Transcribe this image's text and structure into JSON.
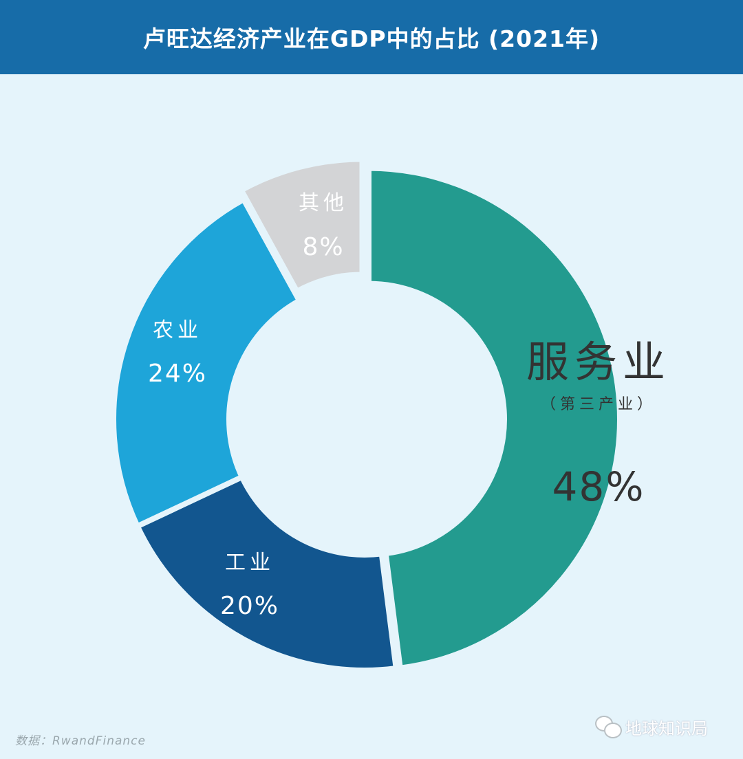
{
  "chart_data": {
    "type": "pie",
    "title": "卢旺达经济产业在GDP中的占比 (2021年)",
    "donut": true,
    "slices": [
      {
        "label": "服务业",
        "sublabel": "（第三产业）",
        "value": 48,
        "value_label": "48%",
        "color": "#239b8f"
      },
      {
        "label": "工业",
        "value": 20,
        "value_label": "20%",
        "color": "#12568f"
      },
      {
        "label": "农业",
        "value": 24,
        "value_label": "24%",
        "color": "#1ea5d9"
      },
      {
        "label": "其他",
        "value": 8,
        "value_label": "8%",
        "color": "#d3d4d6"
      }
    ]
  },
  "background_color": "#e5f4fb",
  "header_color": "#176ca8",
  "source": "数据：RwandFinance",
  "watermark": "地球知识局",
  "watermark_icon": "wechat-icon"
}
